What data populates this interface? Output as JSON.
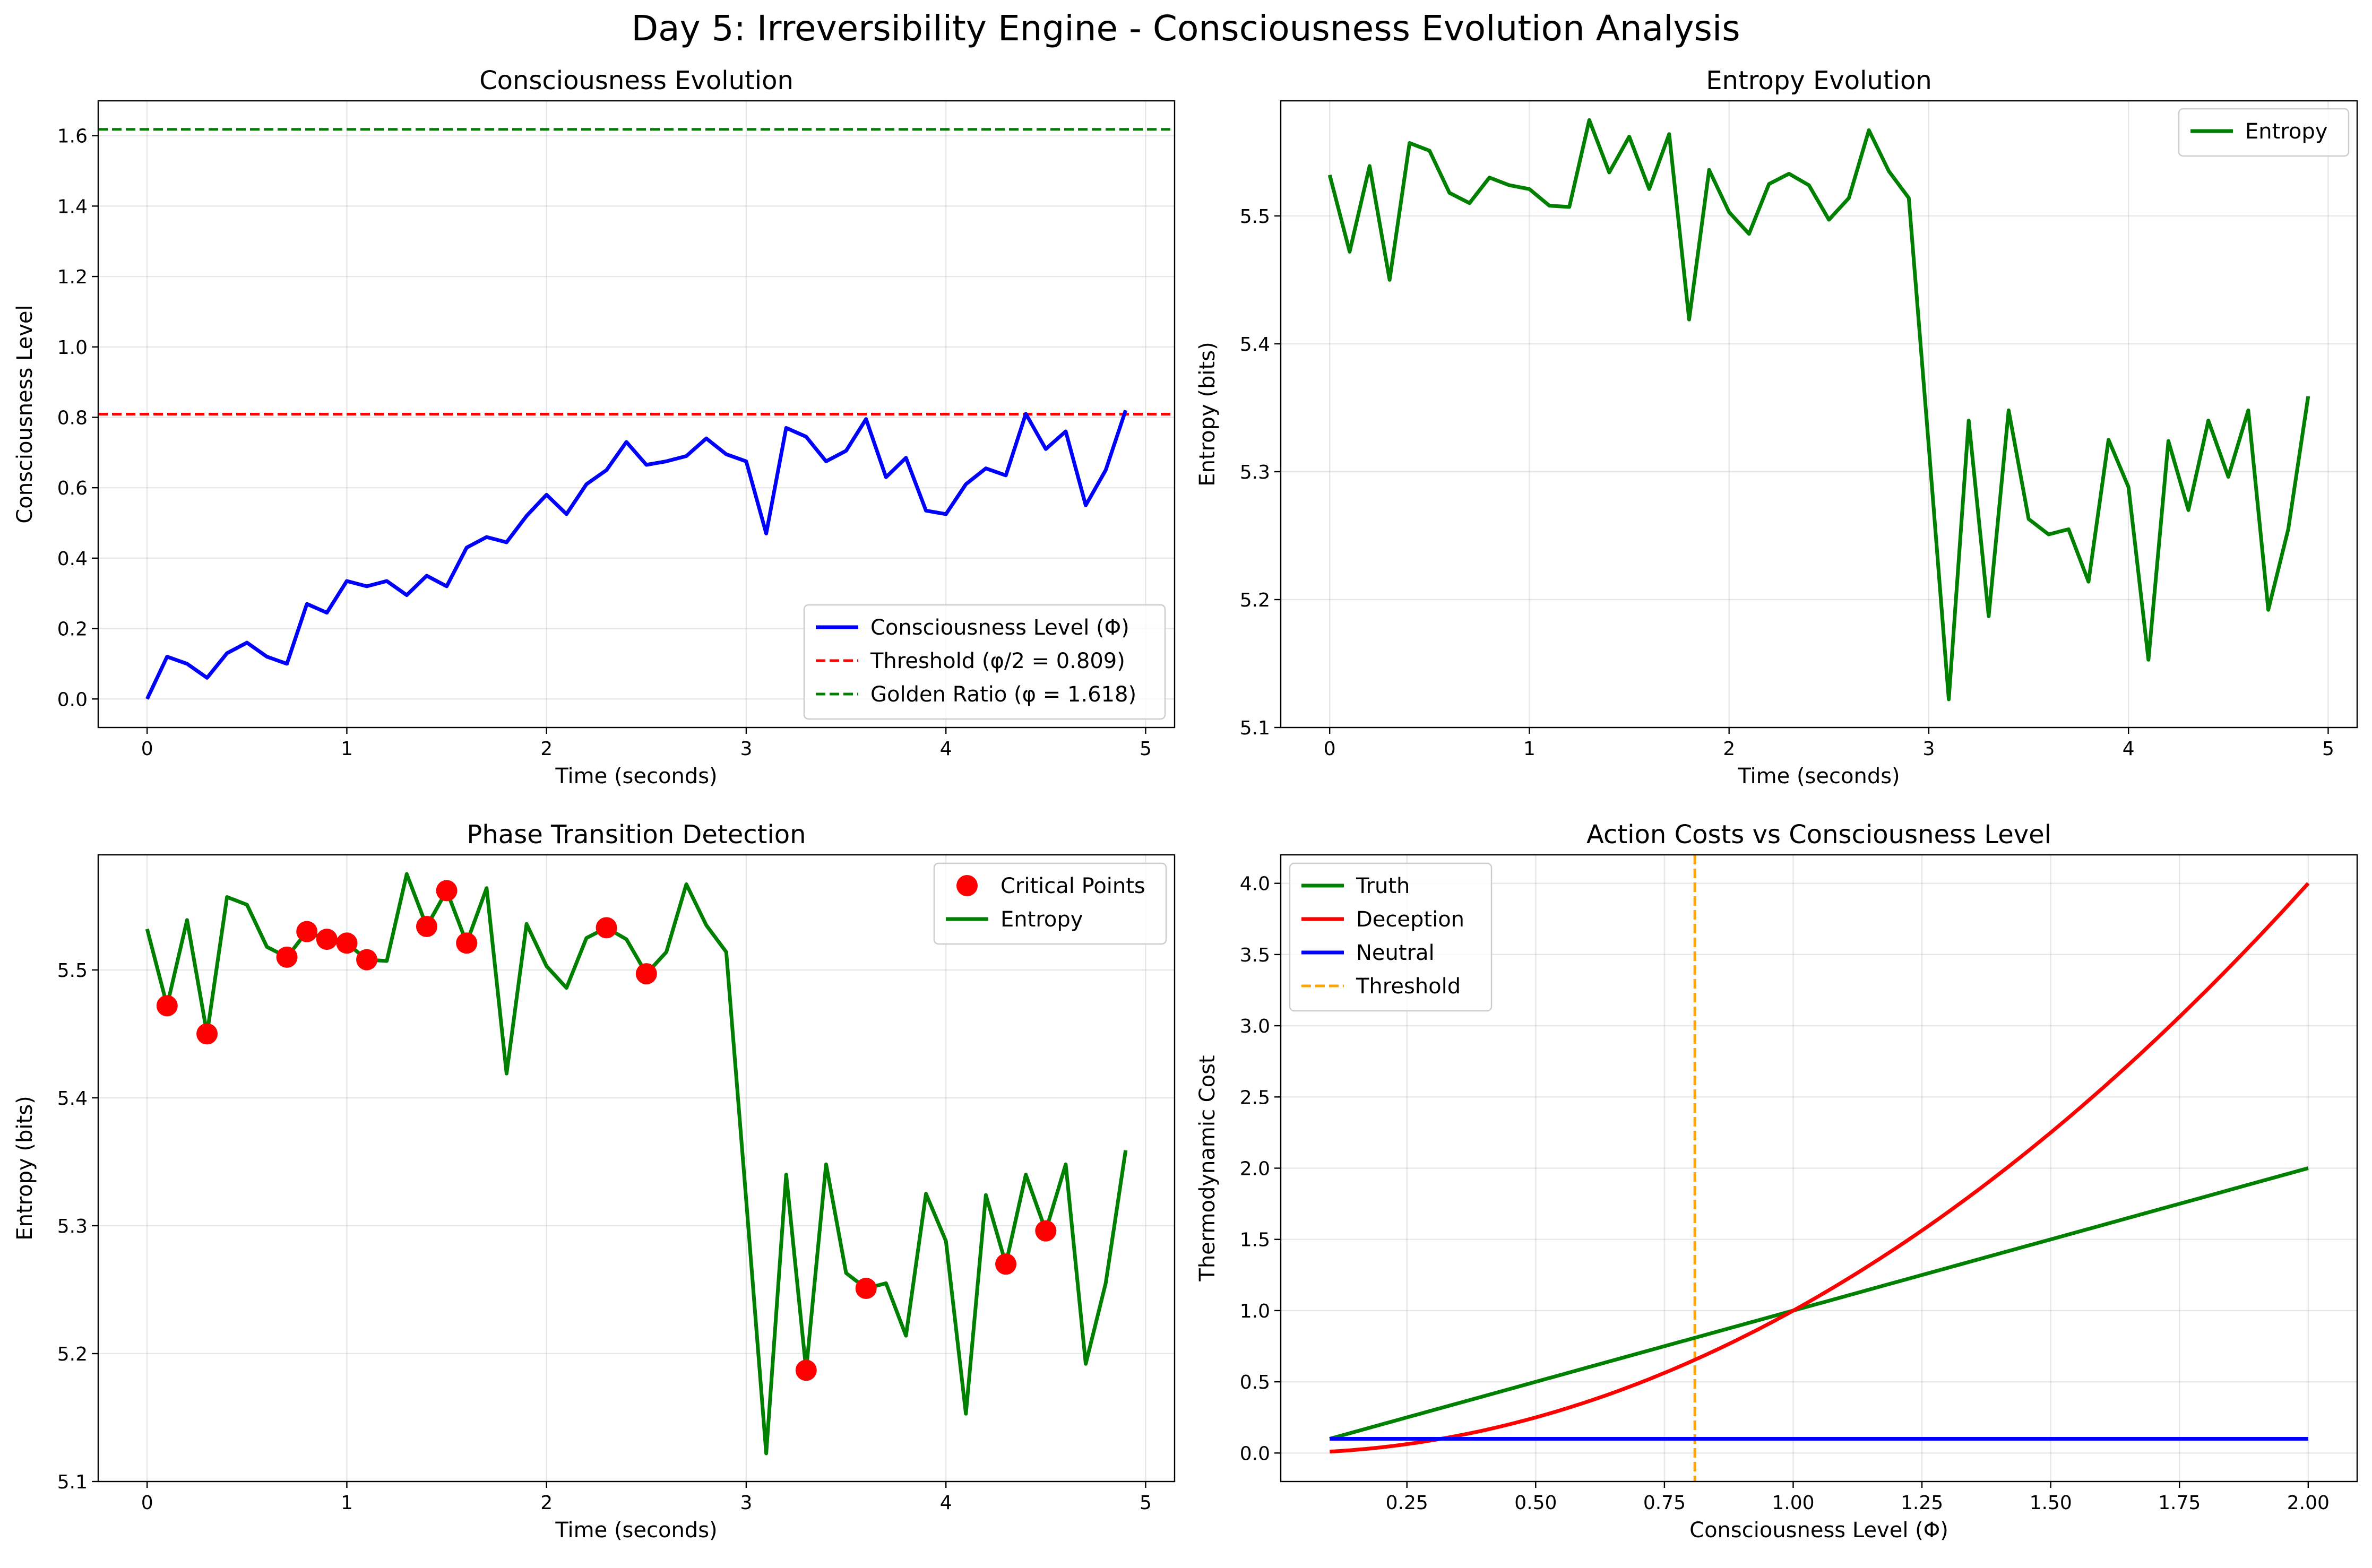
{
  "figure": {
    "title": "Day 5: Irreversibility Engine - Consciousness Evolution Analysis"
  },
  "chart_data": [
    {
      "type": "line",
      "title": "Consciousness Evolution",
      "xlabel": "Time (seconds)",
      "ylabel": "Consciousness Level",
      "xlim": [
        -0.245,
        5.145
      ],
      "ylim": [
        -0.081,
        1.699
      ],
      "xticks": [
        0,
        1,
        2,
        3,
        4,
        5
      ],
      "yticks": [
        0.0,
        0.2,
        0.4,
        0.6,
        0.8,
        1.0,
        1.2,
        1.4,
        1.6
      ],
      "grid": true,
      "legend_position": "lower-right",
      "x": [
        0.0,
        0.1,
        0.2,
        0.3,
        0.4,
        0.5,
        0.6,
        0.7,
        0.8,
        0.9,
        1.0,
        1.1,
        1.2,
        1.3,
        1.4,
        1.5,
        1.6,
        1.7,
        1.8,
        1.9,
        2.0,
        2.1,
        2.2,
        2.3,
        2.4,
        2.5,
        2.6,
        2.7,
        2.8,
        2.9,
        3.0,
        3.1,
        3.2,
        3.3,
        3.4,
        3.5,
        3.6,
        3.7,
        3.8,
        3.9,
        4.0,
        4.1,
        4.2,
        4.3,
        4.4,
        4.5,
        4.6,
        4.7,
        4.8,
        4.9
      ],
      "series": [
        {
          "name": "Consciousness Level (Φ)",
          "color": "#0000ff",
          "values": [
            0.0,
            0.12,
            0.1,
            0.06,
            0.13,
            0.16,
            0.12,
            0.1,
            0.27,
            0.245,
            0.335,
            0.32,
            0.335,
            0.295,
            0.35,
            0.32,
            0.43,
            0.46,
            0.445,
            0.52,
            0.58,
            0.525,
            0.61,
            0.65,
            0.73,
            0.665,
            0.675,
            0.69,
            0.74,
            0.695,
            0.675,
            0.47,
            0.77,
            0.745,
            0.675,
            0.705,
            0.795,
            0.63,
            0.685,
            0.535,
            0.525,
            0.61,
            0.655,
            0.635,
            0.81,
            0.71,
            0.76,
            0.55,
            0.65,
            0.82
          ]
        }
      ],
      "reference_lines": [
        {
          "name": "Threshold (φ/2 = 0.809)",
          "orientation": "horizontal",
          "value": 0.809,
          "color": "#ff0000",
          "style": "dashed"
        },
        {
          "name": "Golden Ratio (φ = 1.618)",
          "orientation": "horizontal",
          "value": 1.618,
          "color": "#008000",
          "style": "dashed"
        }
      ]
    },
    {
      "type": "line",
      "title": "Entropy Evolution",
      "xlabel": "Time (seconds)",
      "ylabel": "Entropy (bits)",
      "xlim": [
        -0.245,
        5.145
      ],
      "ylim": [
        5.1,
        5.59
      ],
      "xticks": [
        0,
        1,
        2,
        3,
        4,
        5
      ],
      "yticks": [
        5.1,
        5.2,
        5.3,
        5.4,
        5.5
      ],
      "grid": true,
      "legend_position": "upper-right",
      "x": [
        0.0,
        0.1,
        0.2,
        0.3,
        0.4,
        0.5,
        0.6,
        0.7,
        0.8,
        0.9,
        1.0,
        1.1,
        1.2,
        1.3,
        1.4,
        1.5,
        1.6,
        1.7,
        1.8,
        1.9,
        2.0,
        2.1,
        2.2,
        2.3,
        2.4,
        2.5,
        2.6,
        2.7,
        2.8,
        2.9,
        3.0,
        3.1,
        3.2,
        3.3,
        3.4,
        3.5,
        3.6,
        3.7,
        3.8,
        3.9,
        4.0,
        4.1,
        4.2,
        4.3,
        4.4,
        4.5,
        4.6,
        4.7,
        4.8,
        4.9
      ],
      "series": [
        {
          "name": "Entropy",
          "color": "#008000",
          "values": [
            5.532,
            5.472,
            5.539,
            5.45,
            5.557,
            5.551,
            5.518,
            5.51,
            5.53,
            5.524,
            5.521,
            5.508,
            5.507,
            5.575,
            5.534,
            5.562,
            5.521,
            5.564,
            5.419,
            5.536,
            5.503,
            5.486,
            5.525,
            5.533,
            5.524,
            5.497,
            5.514,
            5.567,
            5.535,
            5.514,
            5.32,
            5.122,
            5.34,
            5.187,
            5.348,
            5.263,
            5.251,
            5.255,
            5.214,
            5.325,
            5.288,
            5.153,
            5.324,
            5.27,
            5.34,
            5.296,
            5.348,
            5.192,
            5.255,
            5.359
          ]
        }
      ]
    },
    {
      "type": "line",
      "title": "Phase Transition Detection",
      "xlabel": "Time (seconds)",
      "ylabel": "Entropy (bits)",
      "xlim": [
        -0.245,
        5.145
      ],
      "ylim": [
        5.1,
        5.59
      ],
      "xticks": [
        0,
        1,
        2,
        3,
        4,
        5
      ],
      "yticks": [
        5.1,
        5.2,
        5.3,
        5.4,
        5.5
      ],
      "grid": true,
      "legend_position": "upper-right",
      "x": [
        0.0,
        0.1,
        0.2,
        0.3,
        0.4,
        0.5,
        0.6,
        0.7,
        0.8,
        0.9,
        1.0,
        1.1,
        1.2,
        1.3,
        1.4,
        1.5,
        1.6,
        1.7,
        1.8,
        1.9,
        2.0,
        2.1,
        2.2,
        2.3,
        2.4,
        2.5,
        2.6,
        2.7,
        2.8,
        2.9,
        3.0,
        3.1,
        3.2,
        3.3,
        3.4,
        3.5,
        3.6,
        3.7,
        3.8,
        3.9,
        4.0,
        4.1,
        4.2,
        4.3,
        4.4,
        4.5,
        4.6,
        4.7,
        4.8,
        4.9
      ],
      "series": [
        {
          "name": "Entropy",
          "color": "#008000",
          "values": [
            5.532,
            5.472,
            5.539,
            5.45,
            5.557,
            5.551,
            5.518,
            5.51,
            5.53,
            5.524,
            5.521,
            5.508,
            5.507,
            5.575,
            5.534,
            5.562,
            5.521,
            5.564,
            5.419,
            5.536,
            5.503,
            5.486,
            5.525,
            5.533,
            5.524,
            5.497,
            5.514,
            5.567,
            5.535,
            5.514,
            5.32,
            5.122,
            5.34,
            5.187,
            5.348,
            5.263,
            5.251,
            5.255,
            5.214,
            5.325,
            5.288,
            5.153,
            5.324,
            5.27,
            5.34,
            5.296,
            5.348,
            5.192,
            5.255,
            5.359
          ]
        }
      ],
      "scatter": {
        "name": "Critical Points",
        "color": "#ff0000",
        "points": [
          [
            0.1,
            5.472
          ],
          [
            0.3,
            5.45
          ],
          [
            0.7,
            5.51
          ],
          [
            0.8,
            5.53
          ],
          [
            0.9,
            5.524
          ],
          [
            1.0,
            5.521
          ],
          [
            1.1,
            5.508
          ],
          [
            1.4,
            5.534
          ],
          [
            1.5,
            5.562
          ],
          [
            1.6,
            5.521
          ],
          [
            2.3,
            5.533
          ],
          [
            2.5,
            5.497
          ],
          [
            3.3,
            5.187
          ],
          [
            3.6,
            5.251
          ],
          [
            4.3,
            5.27
          ],
          [
            4.5,
            5.296
          ]
        ]
      }
    },
    {
      "type": "line",
      "title": "Action Costs vs Consciousness Level",
      "xlabel": "Consciousness Level (Φ)",
      "ylabel": "Thermodynamic Cost",
      "xlim": [
        0.005,
        2.095
      ],
      "ylim": [
        -0.2,
        4.2
      ],
      "xticks": [
        0.25,
        0.5,
        0.75,
        1.0,
        1.25,
        1.5,
        1.75,
        2.0
      ],
      "xtick_labels": [
        "0.25",
        "0.50",
        "0.75",
        "1.00",
        "1.25",
        "1.50",
        "1.75",
        "2.00"
      ],
      "yticks": [
        0.0,
        0.5,
        1.0,
        1.5,
        2.0,
        2.5,
        3.0,
        3.5,
        4.0
      ],
      "grid": true,
      "legend_position": "upper-left",
      "x": [
        0.1,
        0.2,
        0.3,
        0.4,
        0.5,
        0.6,
        0.7,
        0.8,
        0.9,
        1.0,
        1.1,
        1.2,
        1.3,
        1.4,
        1.5,
        1.6,
        1.7,
        1.8,
        1.9,
        2.0
      ],
      "series": [
        {
          "name": "Truth",
          "color": "#008000",
          "values": [
            0.1,
            0.2,
            0.3,
            0.4,
            0.5,
            0.6,
            0.7,
            0.8,
            0.9,
            1.0,
            1.1,
            1.2,
            1.3,
            1.4,
            1.5,
            1.6,
            1.7,
            1.8,
            1.9,
            2.0
          ]
        },
        {
          "name": "Deception",
          "color": "#ff0000",
          "values": [
            0.01,
            0.04,
            0.09,
            0.16,
            0.25,
            0.36,
            0.49,
            0.64,
            0.81,
            1.0,
            1.21,
            1.44,
            1.69,
            1.96,
            2.25,
            2.56,
            2.89,
            3.24,
            3.61,
            4.0
          ]
        },
        {
          "name": "Neutral",
          "color": "#0000ff",
          "values": [
            0.1,
            0.1,
            0.1,
            0.1,
            0.1,
            0.1,
            0.1,
            0.1,
            0.1,
            0.1,
            0.1,
            0.1,
            0.1,
            0.1,
            0.1,
            0.1,
            0.1,
            0.1,
            0.1,
            0.1
          ]
        }
      ],
      "reference_lines": [
        {
          "name": "Threshold",
          "orientation": "vertical",
          "value": 0.809,
          "color": "#ffa500",
          "style": "dashed"
        }
      ]
    }
  ]
}
